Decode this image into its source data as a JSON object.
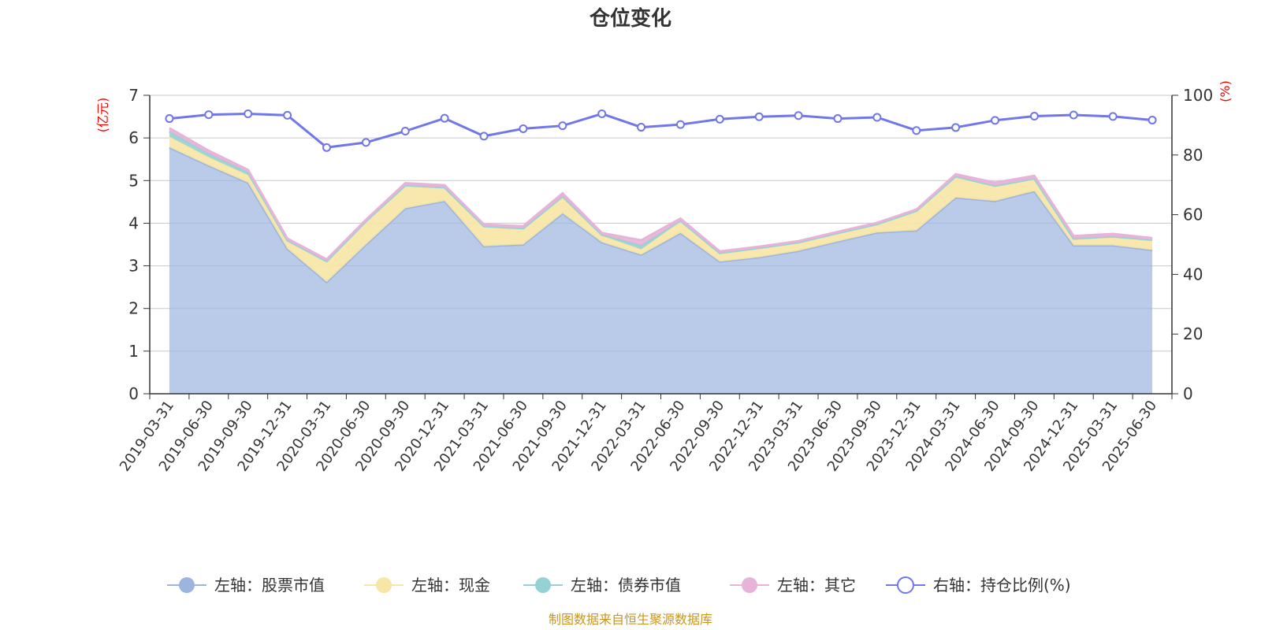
{
  "chart_data": {
    "type": "area",
    "title": "仓位变化",
    "left_axis_unit": "(亿元)",
    "right_axis_unit": "(%)",
    "left_ylim": [
      0,
      7
    ],
    "left_ticks": [
      "0",
      "1",
      "2",
      "3",
      "4",
      "5",
      "6",
      "7"
    ],
    "right_ylim": [
      0,
      100
    ],
    "right_ticks": [
      "0",
      "20",
      "40",
      "60",
      "80",
      "100"
    ],
    "categories": [
      "2019-03-31",
      "2019-06-30",
      "2019-09-30",
      "2019-12-31",
      "2020-03-31",
      "2020-06-30",
      "2020-09-30",
      "2020-12-31",
      "2021-03-31",
      "2021-06-30",
      "2021-09-30",
      "2021-12-31",
      "2022-03-31",
      "2022-06-30",
      "2022-09-30",
      "2022-12-31",
      "2023-03-31",
      "2023-06-30",
      "2023-09-30",
      "2023-12-31",
      "2024-03-31",
      "2024-06-30",
      "2024-09-30",
      "2024-12-31",
      "2025-03-31",
      "2025-06-30"
    ],
    "stacked_series": [
      {
        "name": "左轴：股票市值",
        "axis": "left",
        "color": "#9bb5df",
        "values": [
          5.78,
          5.35,
          4.95,
          3.4,
          2.62,
          3.5,
          4.35,
          4.52,
          3.46,
          3.5,
          4.23,
          3.55,
          3.26,
          3.77,
          3.1,
          3.2,
          3.35,
          3.57,
          3.78,
          3.83,
          4.6,
          4.52,
          4.75,
          3.48,
          3.48,
          3.37
        ]
      },
      {
        "name": "左轴：现金",
        "axis": "left",
        "color": "#f7e6a5",
        "values": [
          0.25,
          0.2,
          0.18,
          0.18,
          0.48,
          0.54,
          0.52,
          0.3,
          0.46,
          0.37,
          0.38,
          0.16,
          0.13,
          0.27,
          0.18,
          0.21,
          0.19,
          0.19,
          0.19,
          0.45,
          0.49,
          0.35,
          0.29,
          0.15,
          0.2,
          0.23
        ]
      },
      {
        "name": "左轴：债券市值",
        "axis": "left",
        "color": "#94d2d6",
        "values": [
          0.12,
          0.08,
          0.07,
          0.02,
          0.01,
          0.01,
          0.02,
          0.02,
          0.01,
          0.01,
          0.02,
          0.02,
          0.09,
          0.02,
          0.02,
          0.01,
          0.01,
          0.01,
          0.01,
          0.01,
          0.01,
          0.01,
          0.01,
          0.01,
          0.01,
          0.01
        ]
      },
      {
        "name": "左轴：其它",
        "axis": "left",
        "color": "#e8b3d8",
        "values": [
          0.08,
          0.07,
          0.05,
          0.04,
          0.04,
          0.03,
          0.05,
          0.05,
          0.04,
          0.05,
          0.07,
          0.04,
          0.12,
          0.05,
          0.04,
          0.03,
          0.03,
          0.03,
          0.03,
          0.03,
          0.05,
          0.07,
          0.06,
          0.06,
          0.06,
          0.04
        ]
      }
    ],
    "line_series": {
      "name": "右轴：持仓比例(%)",
      "axis": "right",
      "color": "#7176e8",
      "values": [
        92.2,
        93.5,
        93.8,
        93.3,
        82.5,
        84.2,
        88.0,
        92.3,
        86.3,
        88.8,
        89.8,
        93.8,
        89.3,
        90.2,
        92.0,
        92.8,
        93.2,
        92.2,
        92.6,
        88.2,
        89.2,
        91.6,
        93.0,
        93.4,
        92.9,
        91.7
      ]
    },
    "legend_position": "bottom",
    "grid": true
  },
  "footer": {
    "source": "制图数据来自恒生聚源数据库"
  }
}
